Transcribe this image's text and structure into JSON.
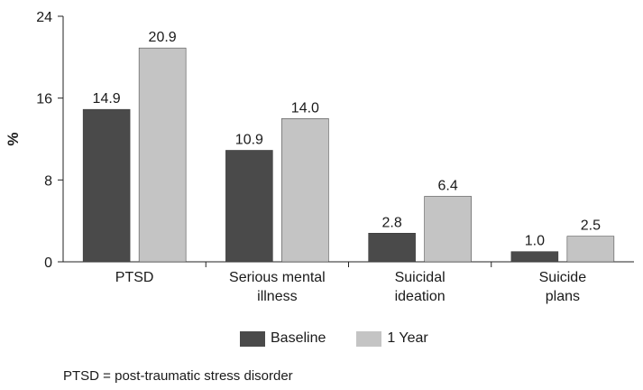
{
  "chart_data": {
    "type": "bar",
    "categories": [
      [
        "PTSD"
      ],
      [
        "Serious mental",
        "illness"
      ],
      [
        "Suicidal",
        "ideation"
      ],
      [
        "Suicide",
        "plans"
      ]
    ],
    "series": [
      {
        "name": "Baseline",
        "values": [
          14.9,
          10.9,
          2.8,
          1.0
        ],
        "labels": [
          "14.9",
          "10.9",
          "2.8",
          "1.0"
        ],
        "color": "#4a4a4a"
      },
      {
        "name": "1 Year",
        "values": [
          20.9,
          14.0,
          6.4,
          2.5
        ],
        "labels": [
          "20.9",
          "14.0",
          "6.4",
          "2.5"
        ],
        "color": "#c4c4c4"
      }
    ],
    "ylabel": "%",
    "ylim": [
      0,
      24
    ],
    "yticks": [
      0,
      8,
      16,
      24
    ],
    "legend_position": "bottom-center",
    "grid": false
  },
  "footnote": "PTSD = post-traumatic stress disorder"
}
